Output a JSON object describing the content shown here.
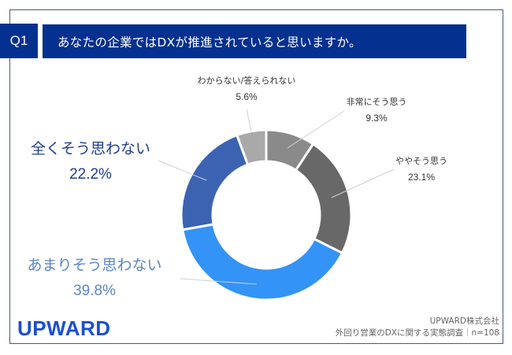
{
  "header": {
    "question_number": "Q1",
    "question_text": "あなたの企業ではDXが推進されていると思いますか。"
  },
  "chart_data": {
    "type": "pie",
    "subtype": "donut",
    "title": "あなたの企業ではDXが推進されていると思いますか。",
    "categories": [
      "非常にそう思う",
      "ややそう思う",
      "あまりそう思わない",
      "全くそう思わない",
      "わからない/答えられない"
    ],
    "values": [
      9.3,
      23.1,
      39.8,
      22.2,
      5.6
    ],
    "unit": "%",
    "colors": [
      "#8a8a8a",
      "#686868",
      "#3393f7",
      "#3b63b2",
      "#a9a9a9"
    ],
    "label_colors": [
      "#333333",
      "#333333",
      "#5a86cc",
      "#1e3f8e",
      "#333333"
    ],
    "start_angle_deg": 0,
    "direction": "clockwise",
    "n": 108
  },
  "labels": [
    {
      "name": "非常にそう思う",
      "pct": "9.3%"
    },
    {
      "name": "ややそう思う",
      "pct": "23.1%"
    },
    {
      "name": "あまりそう思わない",
      "pct": "39.8%"
    },
    {
      "name": "全くそう思わない",
      "pct": "22.2%"
    },
    {
      "name": "わからない/答えられない",
      "pct": "5.6%"
    }
  ],
  "footer": {
    "logo": "UPWARD",
    "company": "UPWARD株式会社",
    "survey": "外回り営業のDXに関する実態調査｜n=108"
  }
}
